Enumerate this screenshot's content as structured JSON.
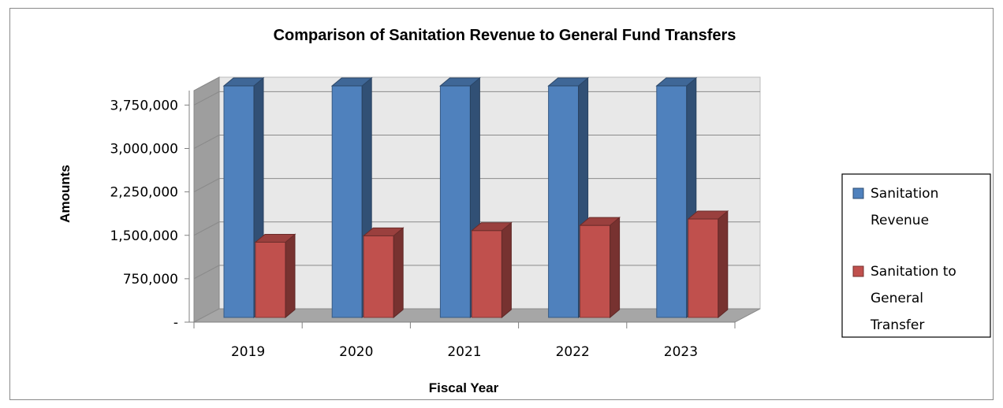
{
  "chart_data": {
    "type": "bar",
    "title": "Comparison of Sanitation Revenue to General Fund Transfers",
    "xlabel": "Fiscal Year",
    "ylabel": "Amounts",
    "categories": [
      "2019",
      "2020",
      "2021",
      "2022",
      "2023"
    ],
    "series": [
      {
        "name": "Sanitation Revenue",
        "values": [
          4000000,
          4000000,
          4000000,
          4000000,
          4000000
        ],
        "color": "#4F81BD"
      },
      {
        "name": "Sanitation to General Transfer",
        "values": [
          1300000,
          1410000,
          1500000,
          1590000,
          1700000
        ],
        "color": "#C0504D"
      }
    ],
    "ylim": [
      0,
      4000000
    ],
    "yticks": [
      0,
      750000,
      1500000,
      2250000,
      3000000,
      3750000
    ],
    "ytick_labels": [
      "-",
      "750,000",
      "1,500,000",
      "2,250,000",
      "3,000,000",
      "3,750,000"
    ],
    "legend_position": "right",
    "legend_lines": [
      [
        "Sanitation",
        "Revenue"
      ],
      [
        "Sanitation to",
        "General",
        "Transfer"
      ]
    ],
    "grid": true,
    "style": "3d-column"
  }
}
